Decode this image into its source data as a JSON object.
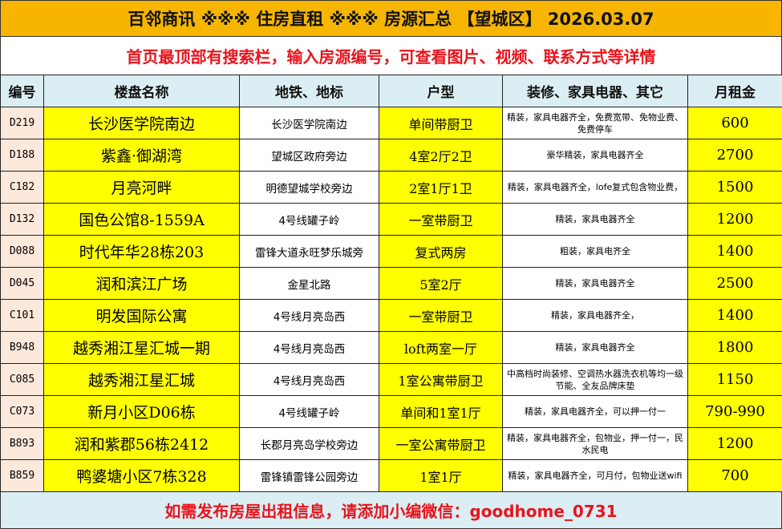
{
  "title": "百邻商讯  ※※※  住房直租  ※※※  房源汇总  【望城区】  2026.03.07",
  "subtitle": "首页最顶部有搜索栏，输入房源编号，可查看图片、视频、联系方式等详情",
  "colors": {
    "title_bg": "#f7b500",
    "header_bg": "#dbeef4",
    "highlight": "#ffff00",
    "id_bg": "#fde9dc",
    "accent_red": "#e8141c"
  },
  "headers": [
    "编号",
    "楼盘名称",
    "地铁、地标",
    "户型",
    "装修、家具电器、其它",
    "月租金"
  ],
  "rows": [
    [
      "D219",
      "长沙医学院南边",
      "长沙医学院南边",
      "单间带厨卫",
      "精装，家具电器齐全，免费宽带、免物业费、免费停车",
      "600"
    ],
    [
      "D188",
      "紫鑫·御湖湾",
      "望城区政府旁边",
      "4室2厅2卫",
      "豪华精装，家具电器齐全",
      "2700"
    ],
    [
      "C182",
      "月亮河畔",
      "明德望城学校旁边",
      "2室1厅1卫",
      "精装，家具电器齐全，lofe复式包含物业费，",
      "1500"
    ],
    [
      "D132",
      "国色公馆8-1559A",
      "4号线罐子岭",
      "一室带厨卫",
      "精装，家具电器齐全",
      "1200"
    ],
    [
      "D088",
      "时代年华28栋203",
      "雷锋大道永旺梦乐城旁",
      "复式两房",
      "粗装，家具电齐全",
      "1400"
    ],
    [
      "D045",
      "润和滨江广场",
      "金星北路",
      "5室2厅",
      "精装，家具电器齐全",
      "2500"
    ],
    [
      "C101",
      "明发国际公寓",
      "4号线月亮岛西",
      "一室带厨卫",
      "精装，家具电器齐全，",
      "1400"
    ],
    [
      "B948",
      "越秀湘江星汇城一期",
      "4号线月亮岛西",
      "loft两室一厅",
      "精装，家具电器齐全",
      "1800"
    ],
    [
      "C085",
      "越秀湘江星汇城",
      "4号线月亮岛西",
      "1室公寓带厨卫",
      "中高档时尚装修、空调热水器洗衣机等均一级节能、全友品牌床垫",
      "1150"
    ],
    [
      "C073",
      "新月小区D06栋",
      "4号线罐子岭",
      "单间和1室1厅",
      "精装，家具电器齐全，可以押一付一",
      "790-990"
    ],
    [
      "B893",
      "润和紫郡56栋2412",
      "长郡月亮岛学校旁边",
      "一室公寓带厨卫",
      "精装，家具电器齐全，包物业，押一付一，民水民电",
      "1200"
    ],
    [
      "B859",
      "鸭婆塘小区7栋328",
      "雷锋镇雷锋公园旁边",
      "1室1厅",
      "精装，家具电器齐全，可月付，包物业送wifi",
      "700"
    ]
  ],
  "footer": "如需发布房屋出租信息，请添加小编微信：goodhome_0731"
}
